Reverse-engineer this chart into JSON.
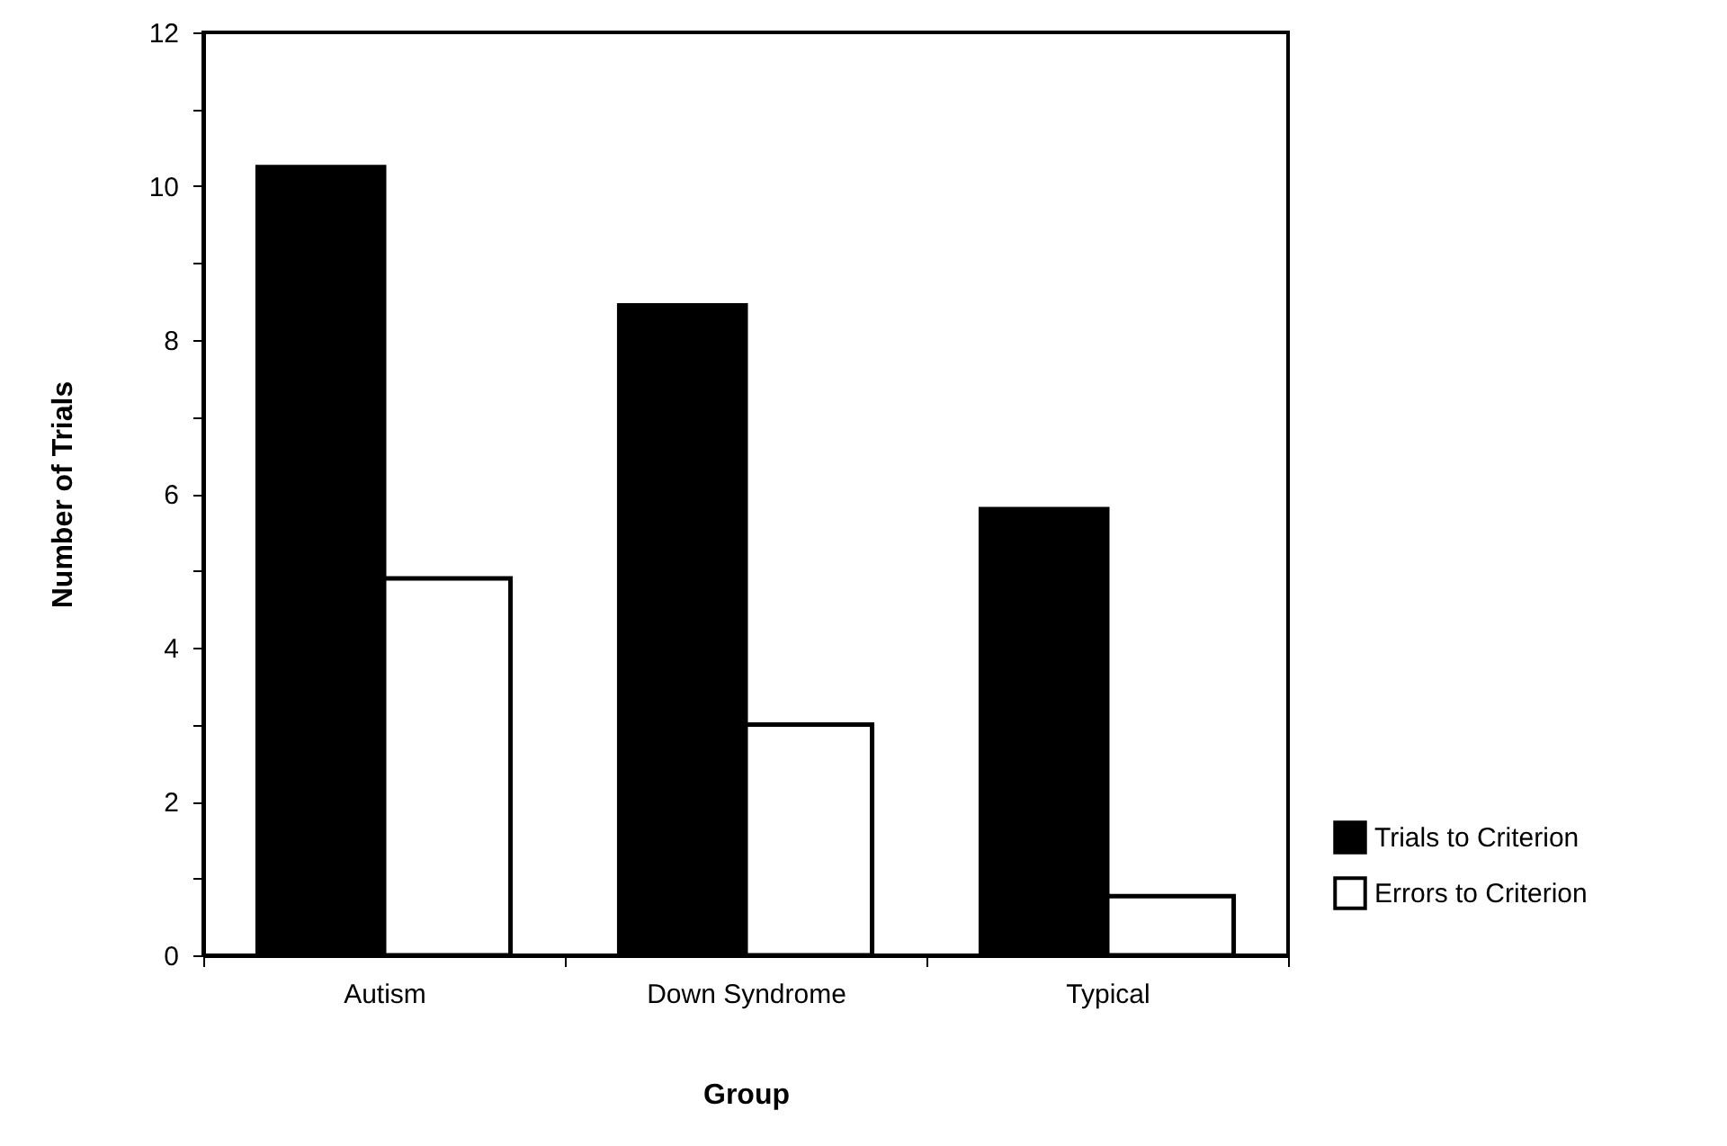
{
  "chart_data": {
    "type": "bar",
    "xlabel": "Group",
    "ylabel": "Number of Trials",
    "categories": [
      "Autism",
      "Down Syndrome",
      "Typical"
    ],
    "series": [
      {
        "name": "Trials to Criterion",
        "color": "#000000",
        "values": [
          10.25,
          8.45,
          5.8
        ]
      },
      {
        "name": "Errors to Criterion",
        "color": "#ffffff",
        "values": [
          4.9,
          3.0,
          0.77
        ]
      }
    ],
    "ylim": [
      0,
      12
    ],
    "yticks": [
      0,
      {
        "value": 1,
        "label": null
      },
      2,
      {
        "value": 3,
        "label": null
      },
      4,
      {
        "value": 5,
        "label": null
      },
      6,
      {
        "value": 7,
        "label": null
      },
      8,
      {
        "value": 9,
        "label": null
      },
      10,
      {
        "value": 11,
        "label": null
      },
      12
    ],
    "grid": false,
    "legend": "bottom right"
  }
}
